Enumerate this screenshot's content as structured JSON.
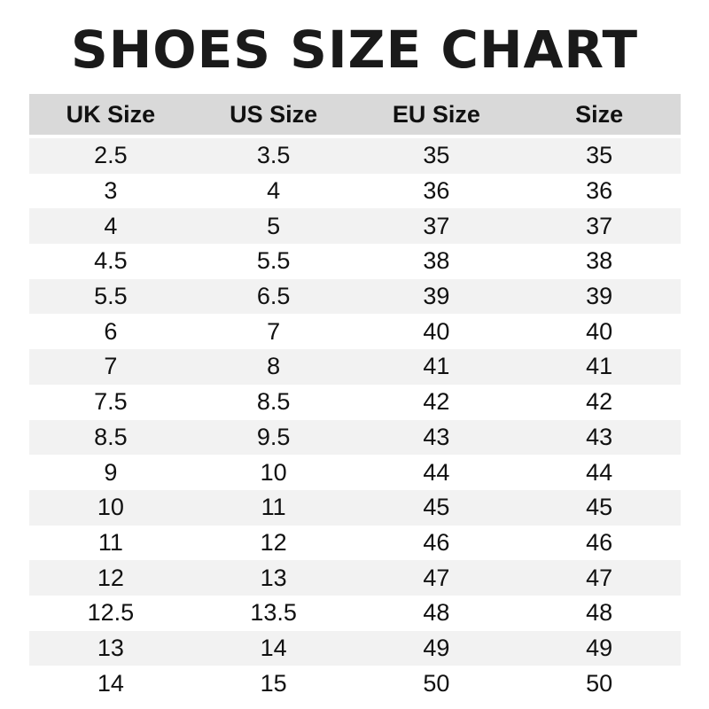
{
  "chart_data": {
    "type": "table",
    "title": "SHOES SIZE CHART",
    "columns": [
      "UK Size",
      "US Size",
      "EU Size",
      "Size"
    ],
    "rows": [
      [
        "2.5",
        "3.5",
        "35",
        "35"
      ],
      [
        "3",
        "4",
        "36",
        "36"
      ],
      [
        "4",
        "5",
        "37",
        "37"
      ],
      [
        "4.5",
        "5.5",
        "38",
        "38"
      ],
      [
        "5.5",
        "6.5",
        "39",
        "39"
      ],
      [
        "6",
        "7",
        "40",
        "40"
      ],
      [
        "7",
        "8",
        "41",
        "41"
      ],
      [
        "7.5",
        "8.5",
        "42",
        "42"
      ],
      [
        "8.5",
        "9.5",
        "43",
        "43"
      ],
      [
        "9",
        "10",
        "44",
        "44"
      ],
      [
        "10",
        "11",
        "45",
        "45"
      ],
      [
        "11",
        "12",
        "46",
        "46"
      ],
      [
        "12",
        "13",
        "47",
        "47"
      ],
      [
        "12.5",
        "13.5",
        "48",
        "48"
      ],
      [
        "13",
        "14",
        "49",
        "49"
      ],
      [
        "14",
        "15",
        "50",
        "50"
      ]
    ],
    "colors": {
      "header_bg": "#d9d9d9",
      "stripe_bg": "#f2f2f2"
    }
  }
}
